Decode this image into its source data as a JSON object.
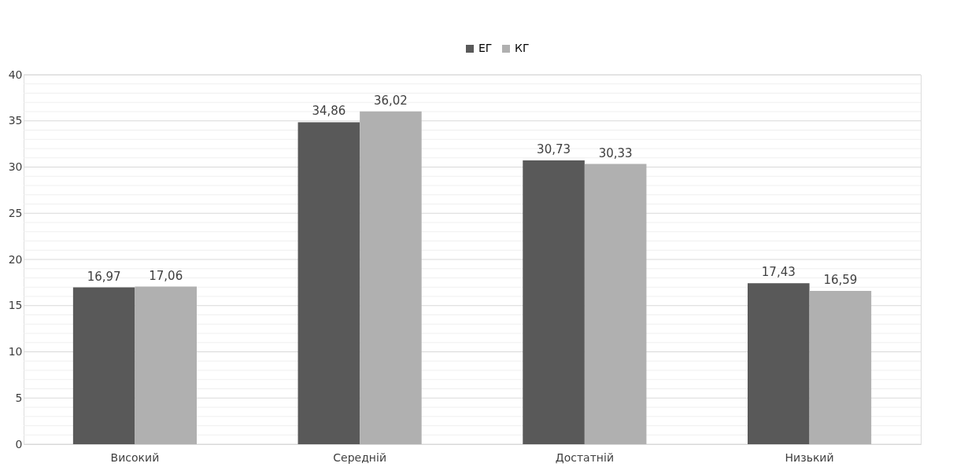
{
  "chart_data": {
    "type": "bar",
    "categories": [
      "Високий",
      "Середній",
      "Достатній",
      "Низький"
    ],
    "series": [
      {
        "name": "ЕГ",
        "color": "#595959",
        "values": [
          16.97,
          34.86,
          30.73,
          17.43
        ]
      },
      {
        "name": "КГ",
        "color": "#b0b0b0",
        "values": [
          17.06,
          36.02,
          30.33,
          16.59
        ]
      }
    ],
    "value_labels": [
      [
        "16,97",
        "34,86",
        "30,73",
        "17,43"
      ],
      [
        "17,06",
        "36,02",
        "30,33",
        "16,59"
      ]
    ],
    "ylim": [
      0,
      40
    ],
    "yticks": [
      0,
      {
        "value": 1,
        "label": null
      },
      {
        "value": 2,
        "label": null
      },
      {
        "value": 3,
        "label": null
      },
      {
        "value": 4,
        "label": null
      },
      5,
      {
        "value": 6,
        "label": null
      },
      {
        "value": 7,
        "label": null
      },
      {
        "value": 8,
        "label": null
      },
      {
        "value": 9,
        "label": null
      },
      10,
      {
        "value": 11,
        "label": null
      },
      {
        "value": 12,
        "label": null
      },
      {
        "value": 13,
        "label": null
      },
      {
        "value": 14,
        "label": null
      },
      15,
      {
        "value": 16,
        "label": null
      },
      {
        "value": 17,
        "label": null
      },
      {
        "value": 18,
        "label": null
      },
      {
        "value": 19,
        "label": null
      },
      20,
      {
        "value": 21,
        "label": null
      },
      {
        "value": 22,
        "label": null
      },
      {
        "value": 23,
        "label": null
      },
      {
        "value": 24,
        "label": null
      },
      25,
      {
        "value": 26,
        "label": null
      },
      {
        "value": 27,
        "label": null
      },
      {
        "value": 28,
        "label": null
      },
      {
        "value": 29,
        "label": null
      },
      30,
      {
        "value": 31,
        "label": null
      },
      {
        "value": 32,
        "label": null
      },
      {
        "value": 33,
        "label": null
      },
      {
        "value": 34,
        "label": null
      },
      35,
      {
        "value": 36,
        "label": null
      },
      {
        "value": 37,
        "label": null
      },
      {
        "value": 38,
        "label": null
      },
      {
        "value": 39,
        "label": null
      },
      40
    ],
    "grid": "y",
    "legend": "top"
  }
}
